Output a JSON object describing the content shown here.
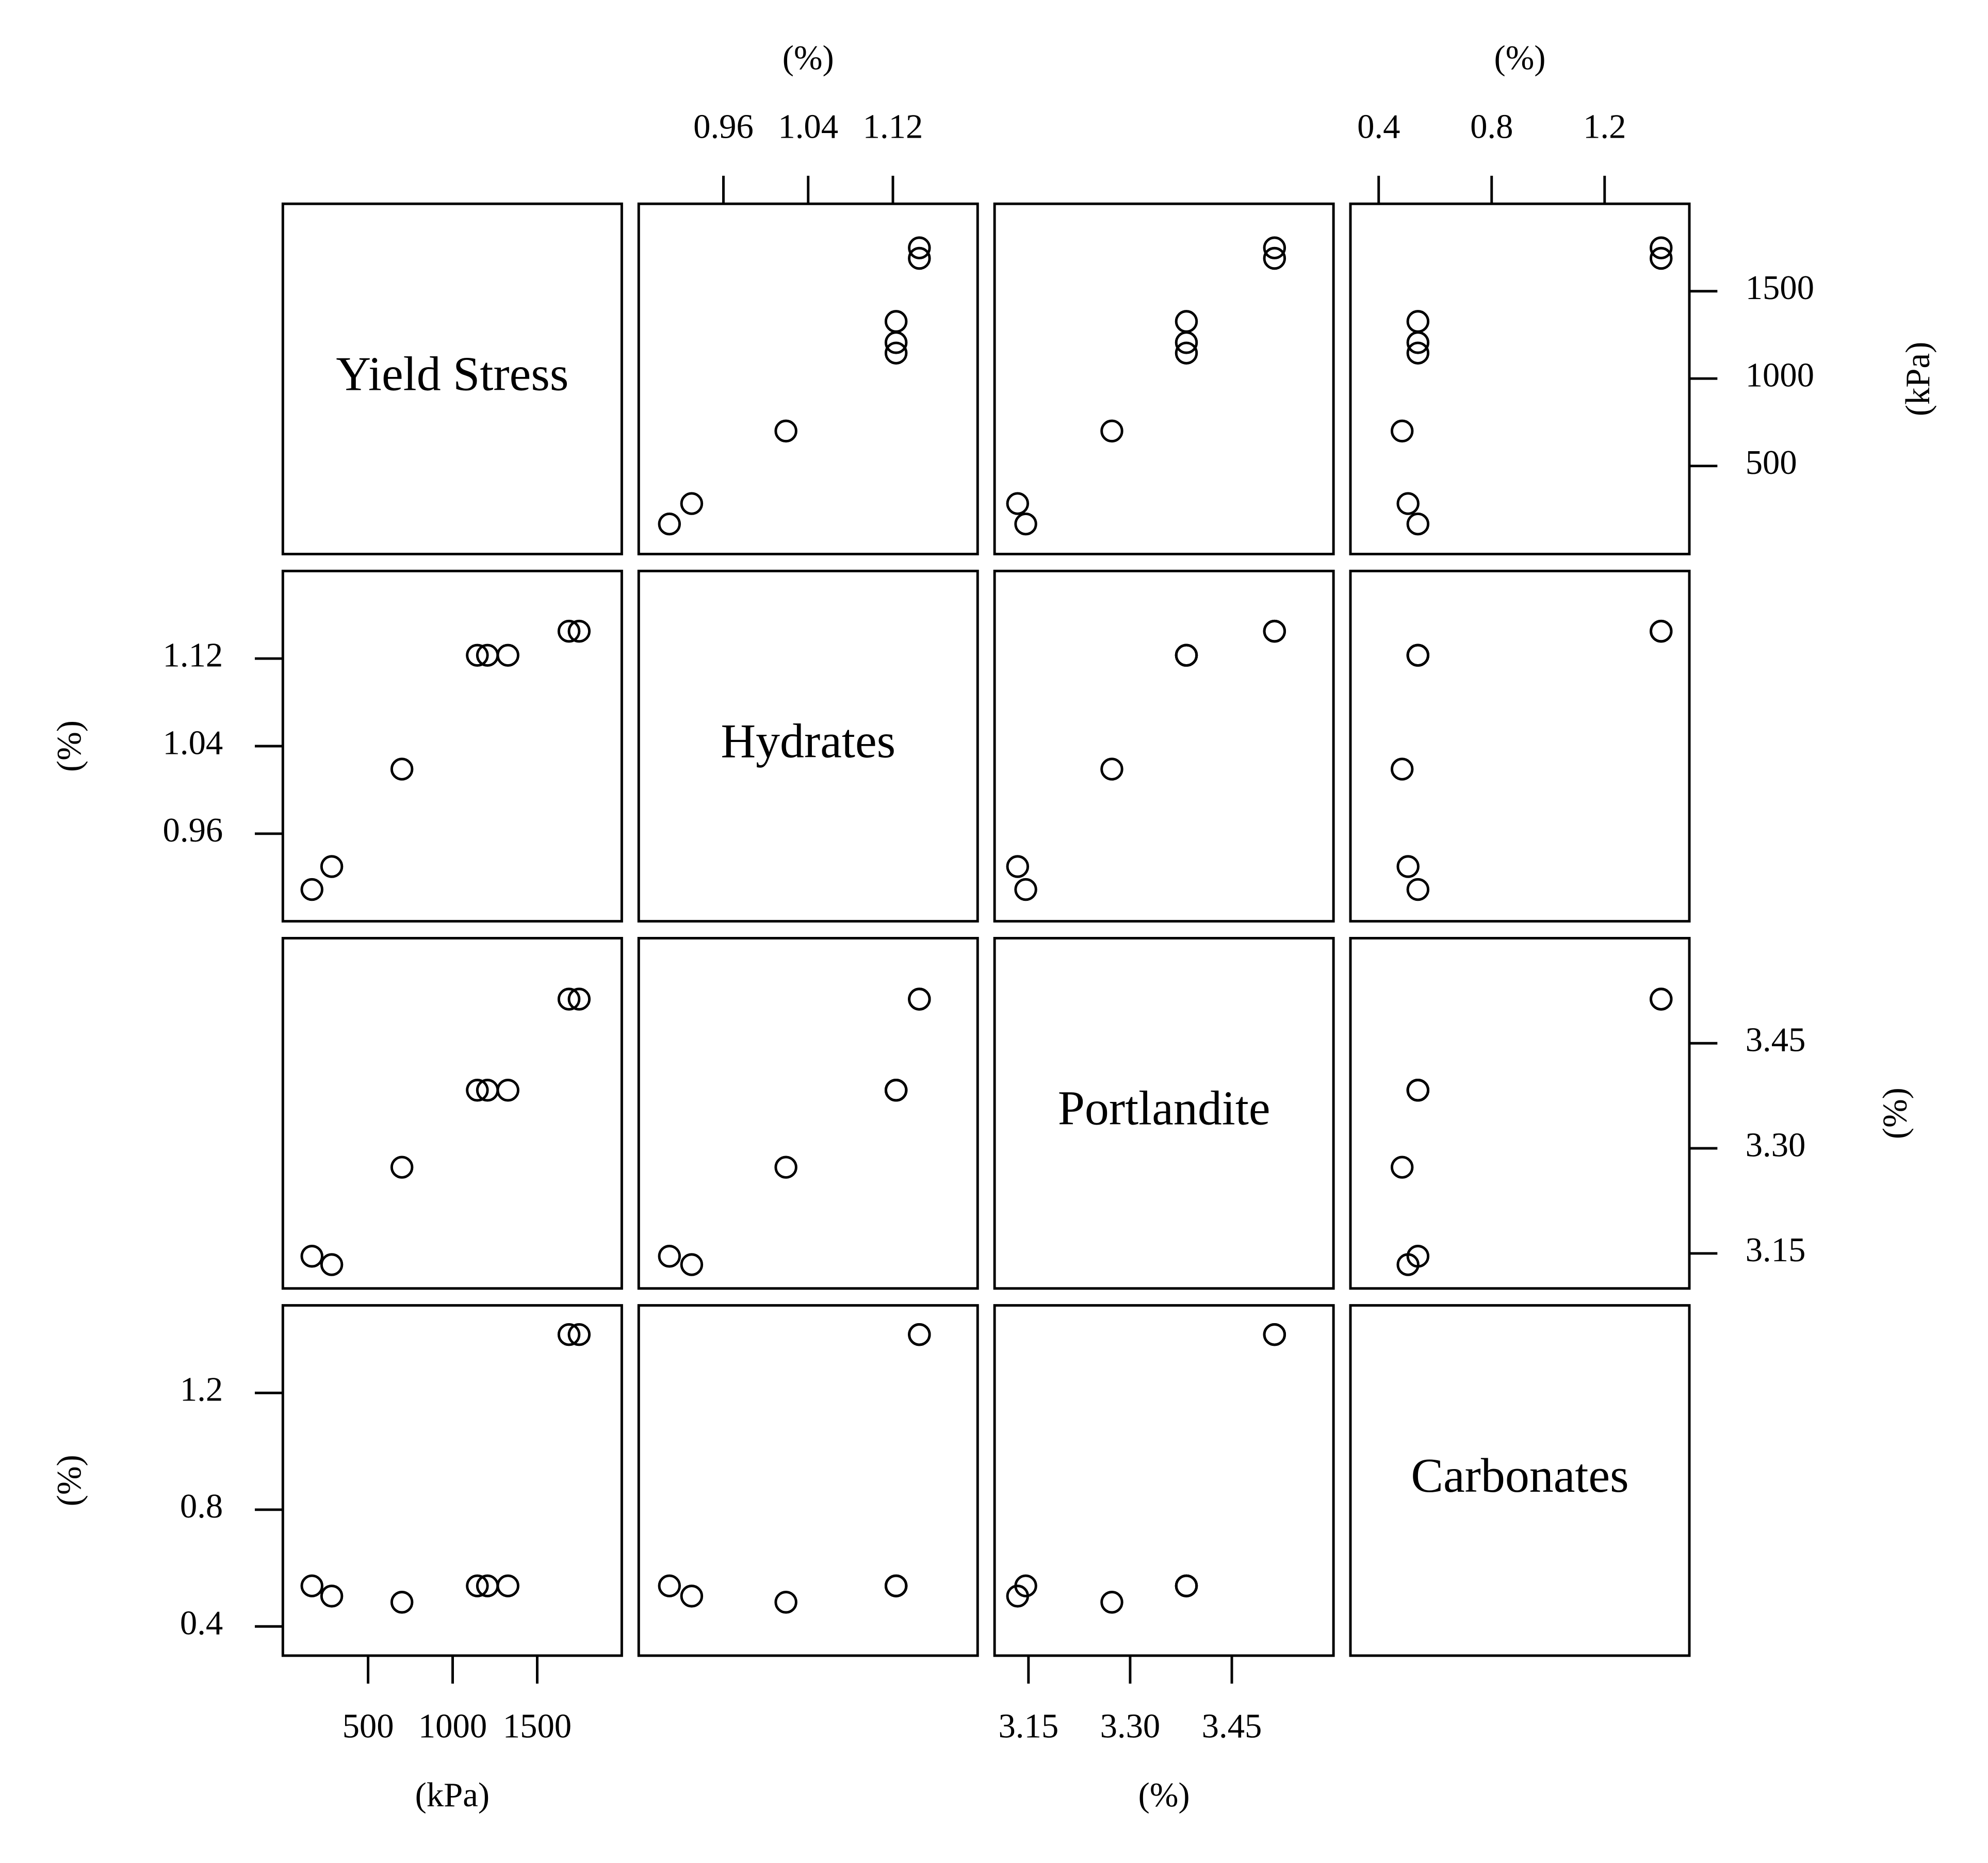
{
  "chart_data": {
    "type": "pairplot",
    "variables": [
      {
        "name": "Yield Stress",
        "unit": "(kPa)",
        "values": [
          168,
          285,
          700,
          1146,
          1206,
          1327,
          1688,
          1748
        ],
        "lim": [
          -4,
          2000
        ],
        "ticks": [
          500,
          1000,
          1500
        ]
      },
      {
        "name": "Hydrates",
        "unit": "(%)",
        "values": [
          0.909,
          0.93,
          1.019,
          1.123,
          1.123,
          1.123,
          1.145,
          1.145
        ],
        "lim": [
          0.88,
          1.2
        ],
        "ticks": [
          0.96,
          1.04,
          1.12
        ]
      },
      {
        "name": "Portlandite",
        "unit": "(%)",
        "values": [
          3.146,
          3.134,
          3.273,
          3.383,
          3.383,
          3.383,
          3.513,
          3.513
        ],
        "lim": [
          3.1,
          3.6
        ],
        "ticks": [
          3.15,
          {
            "value": 3.3,
            "label": "3.30"
          },
          3.45
        ]
      },
      {
        "name": "Carbonates",
        "unit": "(%)",
        "values": [
          0.539,
          0.504,
          0.483,
          0.539,
          0.539,
          0.539,
          1.4,
          1.4
        ],
        "lim": [
          0.3,
          1.5
        ],
        "ticks": [
          0.4,
          0.8,
          1.2
        ]
      }
    ],
    "color": "#000000"
  }
}
